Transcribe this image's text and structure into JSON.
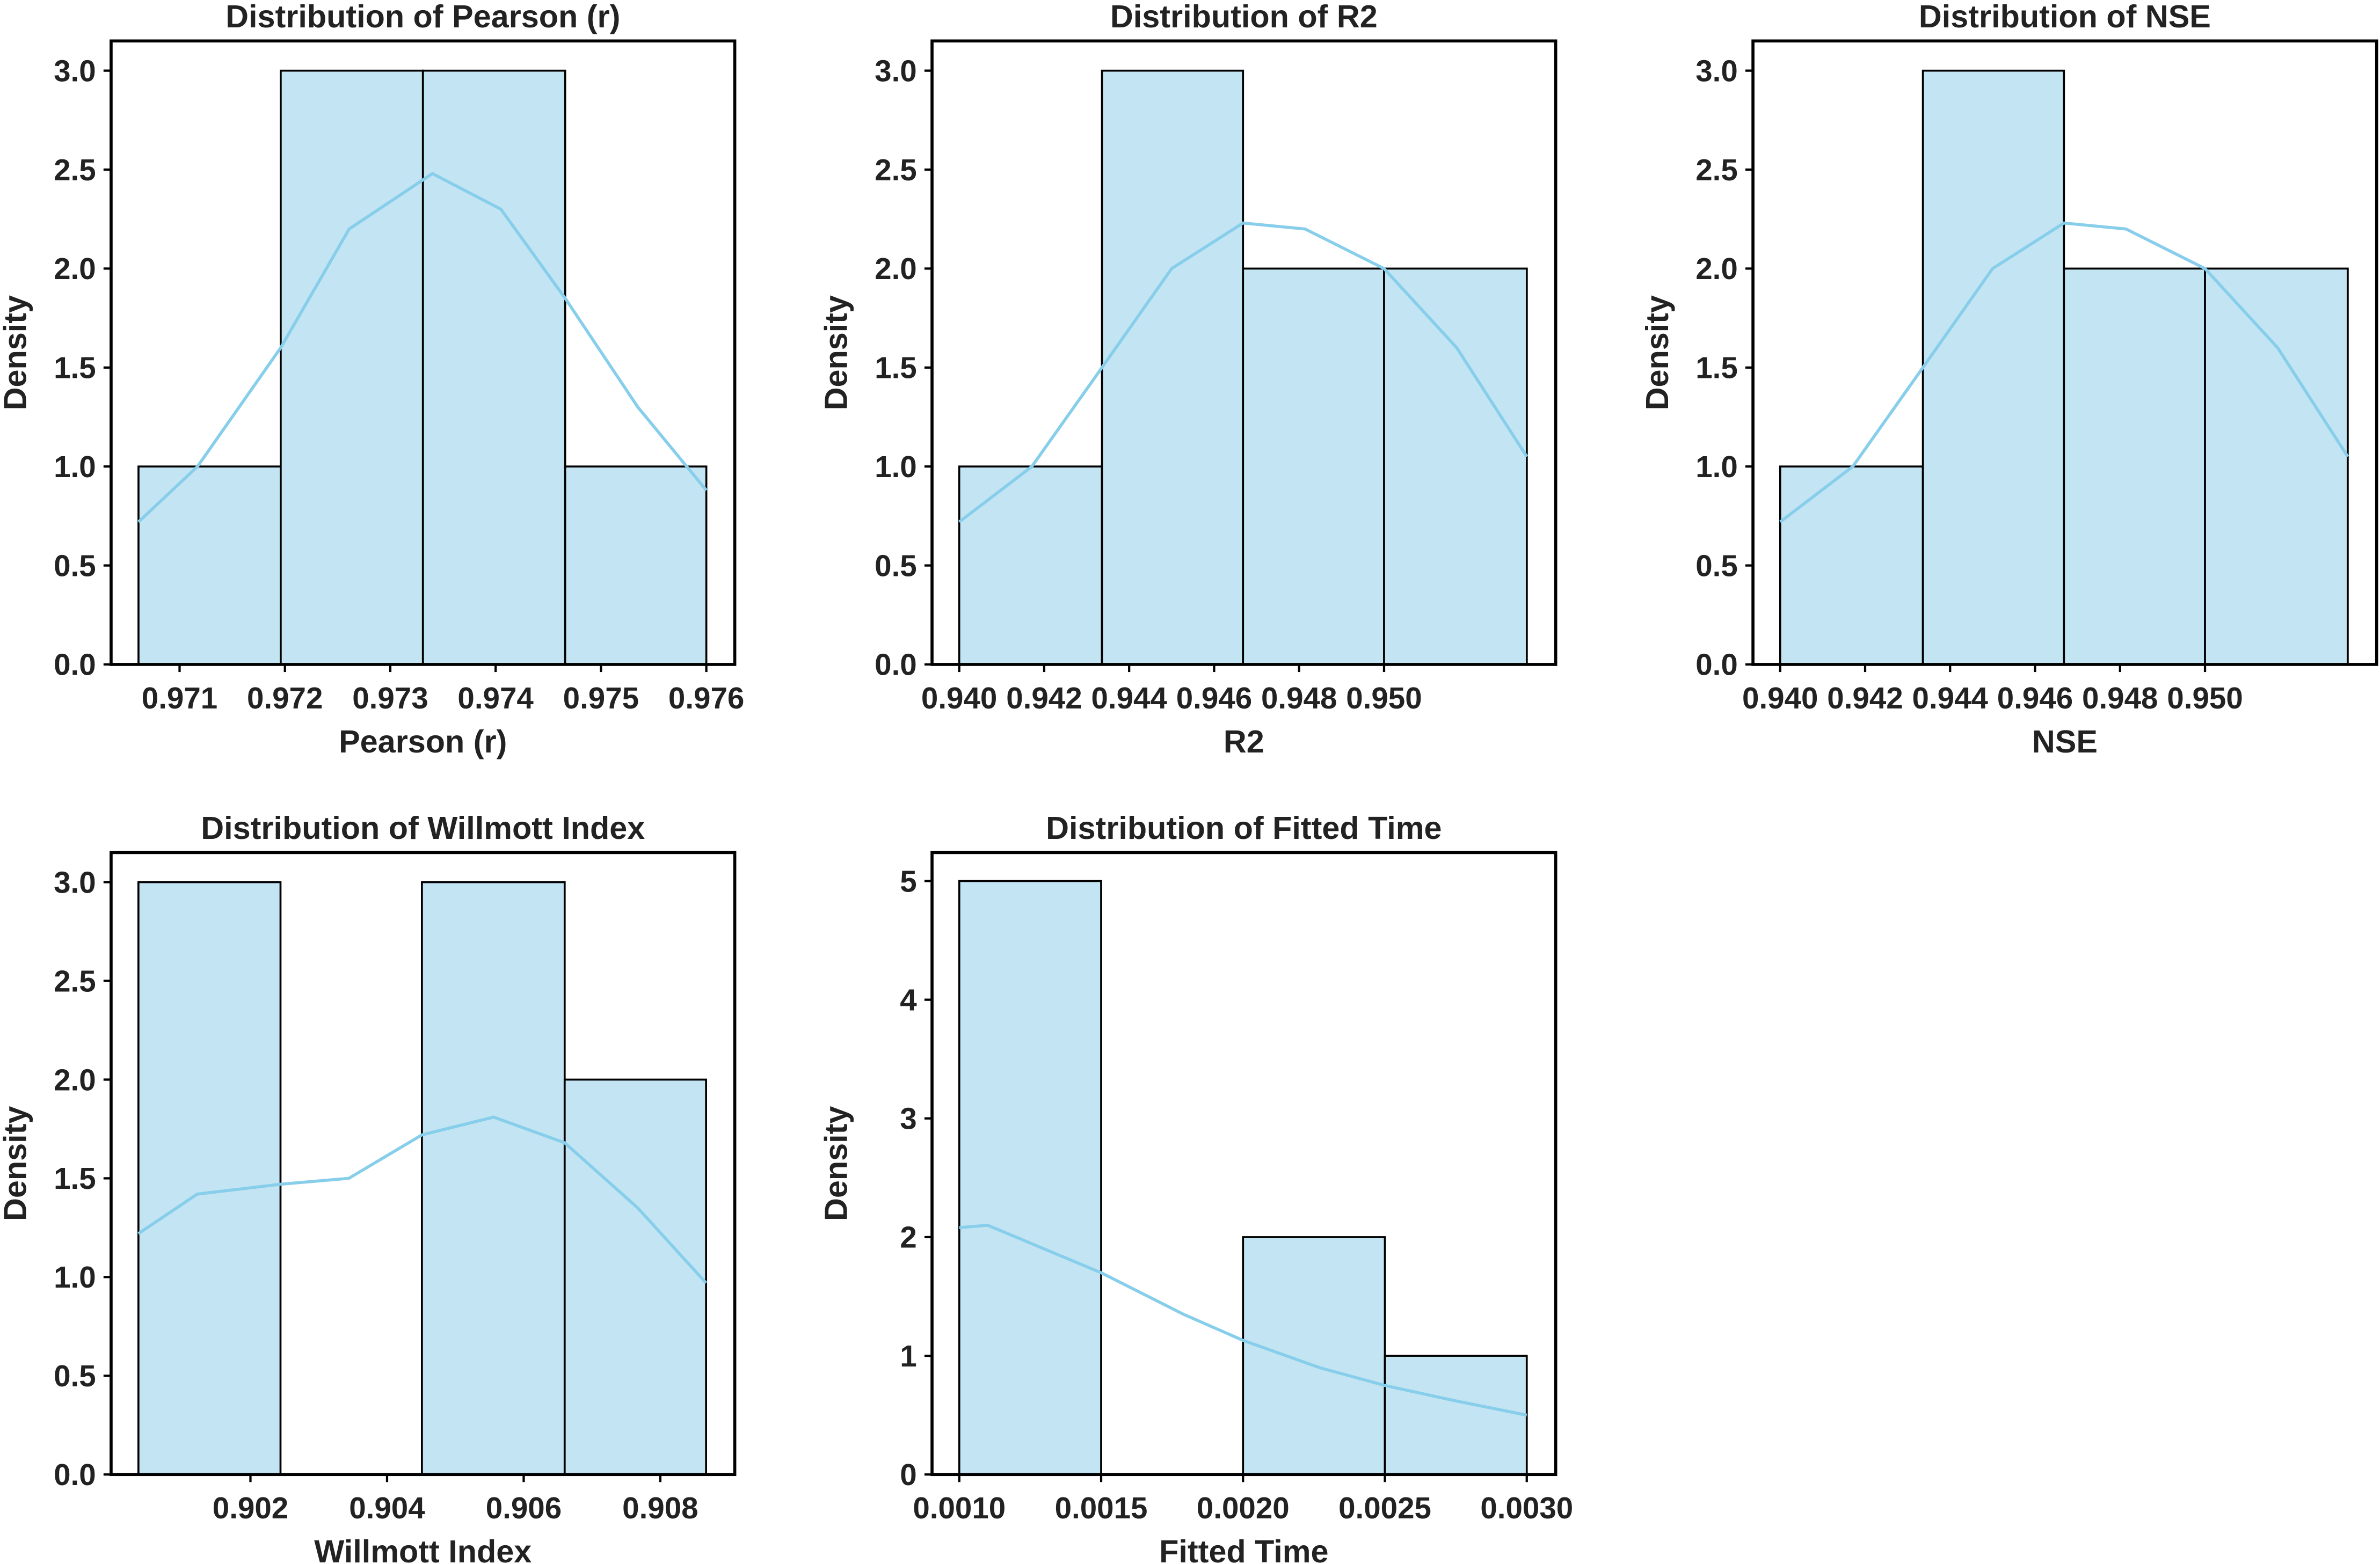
{
  "chart_data": [
    {
      "type": "histogram",
      "title": "Distribution of Pearson (r)",
      "xlabel": "Pearson (r)",
      "ylabel": "Density",
      "bins": [
        0.97061,
        0.97196,
        0.97331,
        0.97466,
        0.976
      ],
      "values": [
        1,
        3,
        3,
        1
      ],
      "color": "#c3e4f3",
      "edgecolor": "#000000",
      "kde": {
        "color": "#87ceeb",
        "x": [
          0.97061,
          0.97117,
          0.97196,
          0.97261,
          0.9734,
          0.97405,
          0.97466,
          0.97535,
          0.976
        ],
        "y": [
          0.72,
          1.0,
          1.6,
          2.2,
          2.48,
          2.3,
          1.85,
          1.3,
          0.88
        ]
      },
      "xlim": [
        0.97035,
        0.97627
      ],
      "ylim": [
        0,
        3.15
      ],
      "xticks": [
        0.971,
        0.972,
        0.973,
        0.974,
        0.975,
        0.976
      ],
      "yticks": [
        {
          "value": 0,
          "label": "0.0"
        },
        0.5,
        {
          "value": 1,
          "label": "1.0"
        },
        1.5,
        {
          "value": 2,
          "label": "2.0"
        },
        2.5,
        {
          "value": 3,
          "label": "3.0"
        }
      ]
    },
    {
      "type": "histogram",
      "title": "Distribution of R2",
      "xlabel": "R2",
      "ylabel": "Density",
      "bins": [
        0.94,
        0.94336,
        0.94668,
        0.95,
        0.95336
      ],
      "values": [
        1,
        3,
        2,
        2
      ],
      "color": "#c3e4f3",
      "edgecolor": "#000000",
      "kde": {
        "color": "#87ceeb",
        "x": [
          0.94,
          0.94171,
          0.94336,
          0.945,
          0.94668,
          0.94814,
          0.95,
          0.95171,
          0.95336
        ],
        "y": [
          0.72,
          1.0,
          1.5,
          2.0,
          2.23,
          2.2,
          2.0,
          1.6,
          1.05
        ]
      },
      "xlim": [
        0.93936,
        0.95404
      ],
      "ylim": [
        0,
        3.15
      ],
      "xticks": [
        {
          "value": 0.94,
          "label": "0.940"
        },
        0.942,
        0.944,
        0.946,
        0.948,
        {
          "value": 0.95,
          "label": "0.950"
        }
      ],
      "yticks": [
        {
          "value": 0,
          "label": "0.0"
        },
        0.5,
        {
          "value": 1,
          "label": "1.0"
        },
        1.5,
        {
          "value": 2,
          "label": "2.0"
        },
        2.5,
        {
          "value": 3,
          "label": "3.0"
        }
      ]
    },
    {
      "type": "histogram",
      "title": "Distribution of NSE",
      "xlabel": "NSE",
      "ylabel": "Density",
      "bins": [
        0.94,
        0.94336,
        0.94668,
        0.95,
        0.95336
      ],
      "values": [
        1,
        3,
        2,
        2
      ],
      "color": "#c3e4f3",
      "edgecolor": "#000000",
      "kde": {
        "color": "#87ceeb",
        "x": [
          0.94,
          0.94171,
          0.94336,
          0.945,
          0.94668,
          0.94814,
          0.95,
          0.95171,
          0.95336
        ],
        "y": [
          0.72,
          1.0,
          1.5,
          2.0,
          2.23,
          2.2,
          2.0,
          1.6,
          1.05
        ]
      },
      "xlim": [
        0.93936,
        0.95404
      ],
      "ylim": [
        0,
        3.15
      ],
      "xticks": [
        {
          "value": 0.94,
          "label": "0.940"
        },
        0.942,
        0.944,
        0.946,
        0.948,
        {
          "value": 0.95,
          "label": "0.950"
        }
      ],
      "yticks": [
        {
          "value": 0,
          "label": "0.0"
        },
        0.5,
        {
          "value": 1,
          "label": "1.0"
        },
        1.5,
        {
          "value": 2,
          "label": "2.0"
        },
        2.5,
        {
          "value": 3,
          "label": "3.0"
        }
      ]
    },
    {
      "type": "histogram",
      "title": "Distribution of Willmott Index",
      "xlabel": "Willmott Index",
      "ylabel": "Density",
      "bins": [
        0.90036,
        0.90244,
        0.90451,
        0.9066,
        0.90867
      ],
      "values": [
        3,
        0,
        3,
        2
      ],
      "color": "#c3e4f3",
      "edgecolor": "#000000",
      "kde": {
        "color": "#87ceeb",
        "x": [
          0.90036,
          0.90122,
          0.90244,
          0.90344,
          0.90451,
          0.90556,
          0.9066,
          0.90767,
          0.90867
        ],
        "y": [
          1.22,
          1.42,
          1.47,
          1.5,
          1.72,
          1.81,
          1.68,
          1.35,
          0.97
        ]
      },
      "xlim": [
        0.89996,
        0.90909
      ],
      "ylim": [
        0,
        3.15
      ],
      "xticks": [
        0.902,
        0.904,
        0.906,
        0.908
      ],
      "yticks": [
        {
          "value": 0,
          "label": "0.0"
        },
        0.5,
        {
          "value": 1,
          "label": "1.0"
        },
        1.5,
        {
          "value": 2,
          "label": "2.0"
        },
        2.5,
        {
          "value": 3,
          "label": "3.0"
        }
      ]
    },
    {
      "type": "histogram",
      "title": "Distribution of Fitted Time",
      "xlabel": "Fitted Time",
      "ylabel": "Density",
      "bins": [
        0.001,
        0.0015,
        0.002,
        0.0025,
        0.003
      ],
      "values": [
        5,
        0,
        2,
        1
      ],
      "color": "#c3e4f3",
      "edgecolor": "#000000",
      "kde": {
        "color": "#87ceeb",
        "x": [
          0.001,
          0.0011,
          0.0015,
          0.00179,
          0.002,
          0.00227,
          0.0025,
          0.00275,
          0.003
        ],
        "y": [
          2.08,
          2.1,
          1.7,
          1.35,
          1.13,
          0.9,
          0.75,
          0.62,
          0.5
        ]
      },
      "xlim": [
        0.000904,
        0.003102
      ],
      "ylim": [
        0,
        5.24
      ],
      "xticks": [
        {
          "value": 0.001,
          "label": "0.0010"
        },
        {
          "value": 0.0015,
          "label": "0.0015"
        },
        {
          "value": 0.002,
          "label": "0.0020"
        },
        {
          "value": 0.0025,
          "label": "0.0025"
        },
        {
          "value": 0.003,
          "label": "0.0030"
        }
      ],
      "yticks": [
        0,
        1,
        2,
        3,
        4,
        5
      ]
    }
  ]
}
